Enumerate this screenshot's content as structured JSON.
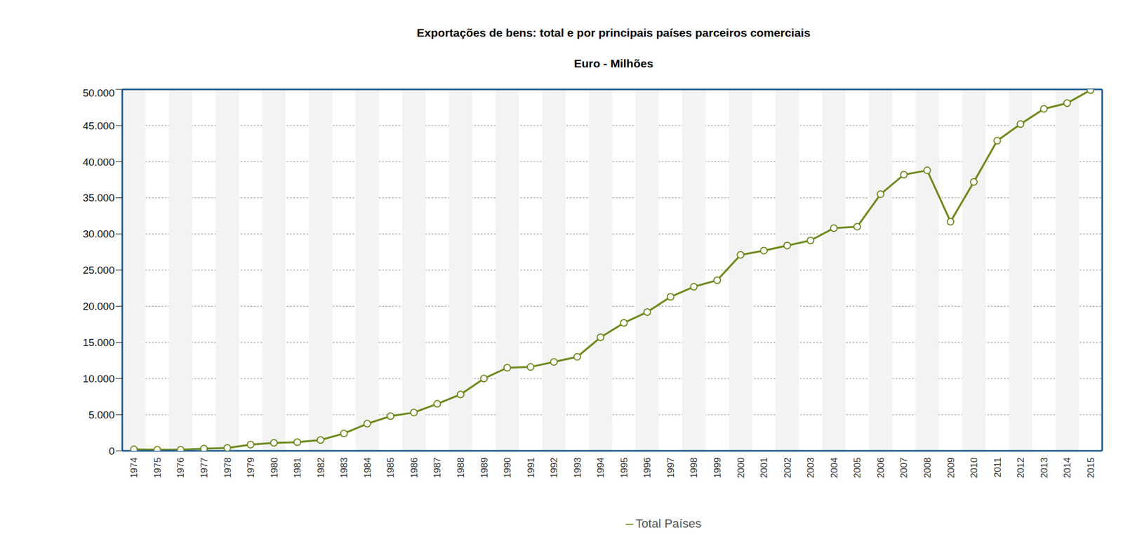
{
  "chart_data": {
    "type": "line",
    "title": "Exportações de bens: total e por principais países parceiros comerciais",
    "subtitle": "Euro - Milhões",
    "categories": [
      "1974",
      "1975",
      "1976",
      "1977",
      "1978",
      "1979",
      "1980",
      "1981",
      "1982",
      "1983",
      "1984",
      "1985",
      "1986",
      "1987",
      "1988",
      "1989",
      "1990",
      "1991",
      "1992",
      "1993",
      "1994",
      "1995",
      "1996",
      "1997",
      "1998",
      "1999",
      "2000",
      "2001",
      "2002",
      "2003",
      "2004",
      "2005",
      "2006",
      "2007",
      "2008",
      "2009",
      "2010",
      "2011",
      "2012",
      "2013",
      "2014",
      "2015"
    ],
    "series": [
      {
        "name": "Total Países",
        "color": "#6f8a1e",
        "marker": "circle",
        "values": [
          200,
          150,
          150,
          300,
          400,
          850,
          1100,
          1200,
          1500,
          2400,
          3750,
          4800,
          5300,
          6500,
          7800,
          10000,
          11500,
          11600,
          12300,
          13000,
          15700,
          17700,
          19200,
          21300,
          22700,
          23600,
          27100,
          27700,
          28400,
          29100,
          30800,
          31000,
          35500,
          38200,
          38800,
          31700,
          37200,
          42900,
          45200,
          47300,
          48100,
          49900
        ]
      }
    ],
    "ylim": [
      0,
      50000
    ],
    "yticks": [
      0,
      {
        "value": 5000,
        "label": "5.000"
      },
      {
        "value": 10000,
        "label": "10.000"
      },
      {
        "value": 15000,
        "label": "15.000"
      },
      {
        "value": 20000,
        "label": "20.000"
      },
      {
        "value": 25000,
        "label": "25.000"
      },
      {
        "value": 30000,
        "label": "30.000"
      },
      {
        "value": 35000,
        "label": "35.000"
      },
      {
        "value": 40000,
        "label": "40.000"
      },
      {
        "value": 45000,
        "label": "45.000"
      },
      {
        "value": 50000,
        "label": "50.000"
      }
    ],
    "grid": true,
    "legend": "bottom"
  }
}
